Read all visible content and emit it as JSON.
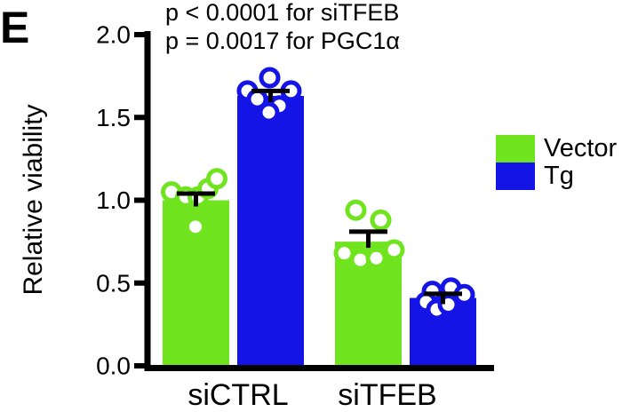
{
  "panel_label": "E",
  "stats_annotation": {
    "line1": "p < 0.0001 for siTFEB",
    "line2": "p = 0.0017 for PGC1α"
  },
  "chart_data": {
    "type": "bar",
    "title": "",
    "xlabel": "",
    "ylabel": "Relative viability",
    "ylim": [
      0,
      2.0
    ],
    "yticks": [
      "0.0",
      "0.5",
      "1.0",
      "1.5",
      "2.0"
    ],
    "grid": false,
    "legend_position": "right",
    "categories": [
      "siCTRL",
      "siTFEB"
    ],
    "series": [
      {
        "name": "Vector",
        "color": "#70E41F",
        "values": [
          1.0,
          0.75
        ],
        "sem": [
          0.04,
          0.06
        ],
        "points": [
          [
            [
              -27.5,
              1.05
            ],
            [
              -11.5,
              1.02
            ],
            [
              2.5,
              1.02
            ],
            [
              13.5,
              1.07
            ],
            [
              23.5,
              1.13
            ],
            [
              -0.5,
              0.84
            ]
          ],
          [
            [
              -14,
              0.94
            ],
            [
              14,
              0.88
            ],
            [
              -27,
              0.68
            ],
            [
              -9,
              0.64
            ],
            [
              9,
              0.65
            ],
            [
              29,
              0.7
            ]
          ]
        ]
      },
      {
        "name": "Tg",
        "color": "#1414E6",
        "values": [
          1.63,
          0.41
        ],
        "sem": [
          0.03,
          0.025
        ],
        "points": [
          [
            [
              -1,
              1.74
            ],
            [
              -26,
              1.66
            ],
            [
              23,
              1.66
            ],
            [
              -15,
              1.61
            ],
            [
              10,
              1.57
            ],
            [
              -2,
              1.53
            ]
          ],
          [
            [
              -12,
              0.45
            ],
            [
              9,
              0.47
            ],
            [
              24,
              0.43
            ],
            [
              -19,
              0.385
            ],
            [
              -7,
              0.34
            ],
            [
              6,
              0.37
            ]
          ]
        ]
      }
    ]
  }
}
